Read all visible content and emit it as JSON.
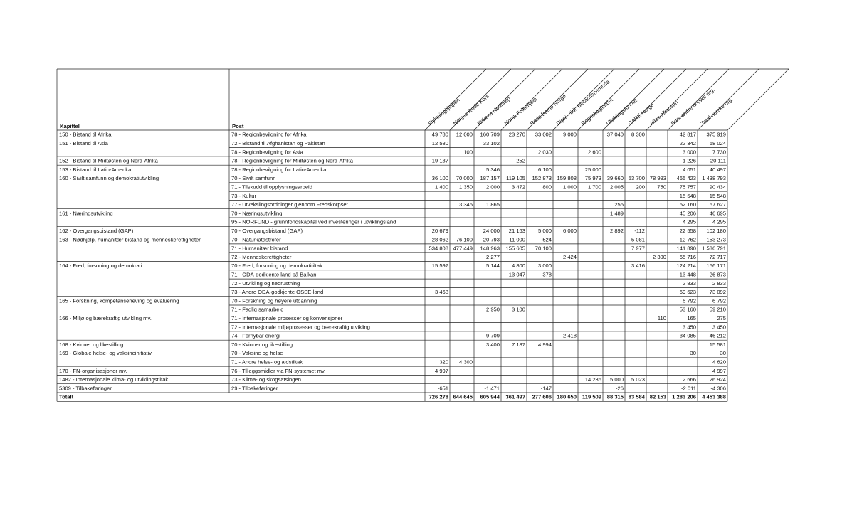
{
  "table": {
    "header": {
      "kapittel": "Kapittel",
      "post": "Post",
      "columns": [
        "Flyktninghjelpen",
        "Norges Røde Kors",
        "Kirkens Nødhjelp",
        "Norsk Folkehjelp",
        "Redd Barna Norge",
        "Digni - tidl. Bistandsnemnda",
        "Regnskogfondet",
        "Utviklingsfondet",
        "CARE Norge",
        "Atlas-alliansen",
        "Sum andre norske org.",
        "Total norske org."
      ]
    },
    "rows": [
      [
        "150 - Bistand til Afrika",
        "78 - Regionbevilgning for Afrika",
        "49 780",
        "12 000",
        "160 709",
        "23 270",
        "33 002",
        "9 000",
        null,
        "37 040",
        "8 300",
        null,
        "42 817",
        "375 919"
      ],
      [
        "151 - Bistand til Asia",
        "72 - Bistand til Afghanistan og Pakistan",
        "12 580",
        null,
        "33 102",
        null,
        null,
        null,
        null,
        null,
        null,
        null,
        "22 342",
        "68 024"
      ],
      [
        null,
        "78 - Regionbevilgning for Asia",
        null,
        "100",
        null,
        null,
        "2 030",
        null,
        "2 600",
        null,
        null,
        null,
        "3 000",
        "7 730"
      ],
      [
        "152 - Bistand til Midtøsten og Nord-Afrika",
        "78 - Regionbevilgning for Midtøsten og Nord-Afrika",
        "19 137",
        null,
        null,
        "-252",
        null,
        null,
        null,
        null,
        null,
        null,
        "1 226",
        "20 111"
      ],
      [
        "153 - Bistand til Latin-Amerika",
        "78 - Regionbevilgning for Latin-Amerika",
        null,
        null,
        "5 346",
        null,
        "6 100",
        null,
        "25 000",
        null,
        null,
        null,
        "4 051",
        "40 497"
      ],
      [
        "160 - Sivilt samfunn og demokratiutvikling",
        "70 - Sivilt samfunn",
        "36 100",
        "70 000",
        "187 157",
        "119 105",
        "152 873",
        "159 808",
        "75 973",
        "39 660",
        "53 700",
        "78 993",
        "465 423",
        "1 438 793"
      ],
      [
        null,
        "71 - Tilskudd til opplysningsarbeid",
        "1 400",
        "1 350",
        "2 000",
        "3 472",
        "800",
        "1 000",
        "1 700",
        "2 005",
        "200",
        "750",
        "75 757",
        "90 434"
      ],
      [
        null,
        "73 - Kultur",
        null,
        null,
        null,
        null,
        null,
        null,
        null,
        null,
        null,
        null,
        "15 548",
        "15 548"
      ],
      [
        null,
        "77 - Utvekslingsordninger gjennom Fredskorpset",
        null,
        "3 346",
        "1 865",
        null,
        null,
        null,
        null,
        "256",
        null,
        null,
        "52 160",
        "57 627"
      ],
      [
        "161 - Næringsutvikling",
        "70 - Næringsutvikling",
        null,
        null,
        null,
        null,
        null,
        null,
        null,
        "1 489",
        null,
        null,
        "45 206",
        "46 695"
      ],
      [
        null,
        "95 - NORFUND - grunnfondskapital ved investeringer i utviklingsland",
        null,
        null,
        null,
        null,
        null,
        null,
        null,
        null,
        null,
        null,
        "4 295",
        "4 295"
      ],
      [
        "162 - Overgangsbistand (GAP)",
        "70 - Overgangsbistand (GAP)",
        "20 679",
        null,
        "24 000",
        "21 163",
        "5 000",
        "6 000",
        null,
        "2 892",
        "-112",
        null,
        "22 558",
        "102 180"
      ],
      [
        "163 - Nødhjelp, humanitær bistand og menneskerettigheter",
        "70 - Naturkatastrofer",
        "28 062",
        "76 100",
        "20 793",
        "11 000",
        "-524",
        null,
        null,
        null,
        "5 081",
        null,
        "12 762",
        "153 273"
      ],
      [
        null,
        "71 - Humanitær bistand",
        "534 808",
        "477 449",
        "148 963",
        "155 605",
        "70 100",
        null,
        null,
        null,
        "7 977",
        null,
        "141 890",
        "1 536 791"
      ],
      [
        null,
        "72 - Menneskerettigheter",
        null,
        null,
        "2 277",
        null,
        null,
        "2 424",
        null,
        null,
        null,
        "2 300",
        "65 716",
        "72 717"
      ],
      [
        "164 - Fred, forsoning og demokrati",
        "70 - Fred, forsoning og demokratitiltak",
        "15 597",
        null,
        "5 144",
        "4 800",
        "3 000",
        null,
        null,
        null,
        "3 416",
        null,
        "124 214",
        "156 171"
      ],
      [
        null,
        "71 - ODA-godkjente land på Balkan",
        null,
        null,
        null,
        "13 047",
        "378",
        null,
        null,
        null,
        null,
        null,
        "13 448",
        "26 873"
      ],
      [
        null,
        "72 - Utvikling og nedrustning",
        null,
        null,
        null,
        null,
        null,
        null,
        null,
        null,
        null,
        null,
        "2 833",
        "2 833"
      ],
      [
        null,
        "73 - Andre ODA-godkjente OSSE-land",
        "3 468",
        null,
        null,
        null,
        null,
        null,
        null,
        null,
        null,
        null,
        "69 623",
        "73 092"
      ],
      [
        "165 - Forskning, kompetanseheving og evaluering",
        "70 - Forskning og høyere utdanning",
        null,
        null,
        null,
        null,
        null,
        null,
        null,
        null,
        null,
        null,
        "6 792",
        "6 792"
      ],
      [
        null,
        "71 - Faglig samarbeid",
        null,
        null,
        "2 950",
        "3 100",
        null,
        null,
        null,
        null,
        null,
        null,
        "53 160",
        "59 210"
      ],
      [
        "166 - Miljø og bærekraftig utvikling mv.",
        "71 - Internasjonale prosesser og konvensjoner",
        null,
        null,
        null,
        null,
        null,
        null,
        null,
        null,
        null,
        "110",
        "165",
        "275"
      ],
      [
        null,
        "72 - Internasjonale miljøprosesser og bærekraftig utvikling",
        null,
        null,
        null,
        null,
        null,
        null,
        null,
        null,
        null,
        null,
        "3 450",
        "3 450"
      ],
      [
        null,
        "74 - Fornybar energi",
        null,
        null,
        "9 709",
        null,
        null,
        "2 418",
        null,
        null,
        null,
        null,
        "34 085",
        "46 212"
      ],
      [
        "168 - Kvinner og likestilling",
        "70 - Kvinner og likestilling",
        null,
        null,
        "3 400",
        "7 187",
        "4 994",
        null,
        null,
        null,
        null,
        null,
        null,
        "15 581"
      ],
      [
        "169 - Globale helse- og vaksineinitiativ",
        "70 - Vaksine og helse",
        null,
        null,
        null,
        null,
        null,
        null,
        null,
        null,
        null,
        null,
        "30",
        "30"
      ],
      [
        null,
        "71 - Andre helse- og aidstiltak",
        "320",
        "4 300",
        null,
        null,
        null,
        null,
        null,
        null,
        null,
        null,
        null,
        "4 620"
      ],
      [
        "170 - FN-organisasjoner mv.",
        "76 - Tilleggsmidler via FN-systemet mv.",
        "4 997",
        null,
        null,
        null,
        null,
        null,
        null,
        null,
        null,
        null,
        null,
        "4 997"
      ],
      [
        "1482 - Internasjonale klima- og utviklingstiltak",
        "73 - Klima- og skogsatsingen",
        null,
        null,
        null,
        null,
        null,
        null,
        "14 236",
        "5 000",
        "5 023",
        null,
        "2 666",
        "26 924"
      ],
      [
        "5309 - Tilbakeføringer",
        "29 - Tilbakeføringer",
        "-651",
        null,
        "-1 471",
        null,
        "-147",
        null,
        null,
        "-26",
        null,
        null,
        "-2 011",
        "-4 306"
      ],
      [
        "Totalt",
        null,
        "726 278",
        "644 645",
        "605 944",
        "361 497",
        "277 606",
        "180 650",
        "119 509",
        "88 315",
        "83 584",
        "82 153",
        "1 283 206",
        "4 453 388"
      ]
    ]
  }
}
